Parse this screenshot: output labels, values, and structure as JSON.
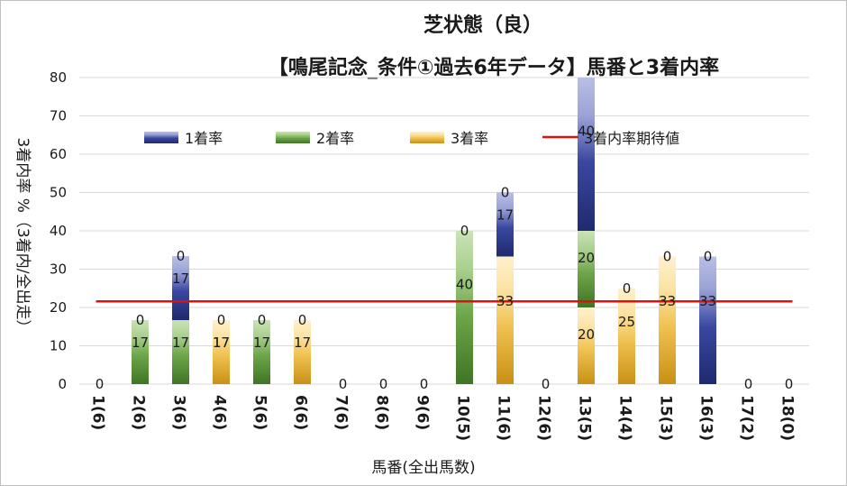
{
  "chart_data": {
    "type": "bar",
    "stacked": true,
    "title": "芝状態（良）",
    "subtitle": "【鳴尾記念_条件①過去6年データ】馬番と3着内率",
    "xlabel": "馬番(全出馬数)",
    "ylabel": "3着内率 %（3着内/全出走）",
    "ylim": [
      0,
      80
    ],
    "yticks": [
      "0",
      "10",
      "20",
      "30",
      "40",
      "50",
      "60",
      "70",
      "80"
    ],
    "grid": true,
    "legend_position": "top",
    "categories": [
      "1(6)",
      "2(6)",
      "3(6)",
      "4(6)",
      "5(6)",
      "6(6)",
      "7(6)",
      "8(6)",
      "9(6)",
      "10(5)",
      "11(6)",
      "12(6)",
      "13(5)",
      "14(4)",
      "15(3)",
      "16(3)",
      "17(2)",
      "18(0)"
    ],
    "series": [
      {
        "name": "1着率",
        "color": "#2f3a8a",
        "values": [
          0,
          0,
          16.7,
          0,
          0,
          0,
          0,
          0,
          0,
          0,
          16.7,
          0,
          40,
          0,
          0,
          33.3,
          0,
          0
        ]
      },
      {
        "name": "2着率",
        "color": "#4e8a2e",
        "values": [
          0,
          16.7,
          16.7,
          0,
          16.7,
          0,
          0,
          0,
          0,
          40,
          0,
          0,
          20,
          0,
          0,
          0,
          0,
          0
        ]
      },
      {
        "name": "3着率",
        "color": "#d9a21e",
        "values": [
          0,
          0,
          0,
          16.7,
          0,
          16.7,
          0,
          0,
          0,
          0,
          33.3,
          0,
          20,
          25,
          33.3,
          0,
          0,
          0
        ]
      }
    ],
    "expected_line": {
      "name": "3着内率期待値",
      "value": 21.6,
      "color": "#e01010"
    },
    "data_labels": [
      {
        "category": "1(6)",
        "labels": [
          "0"
        ]
      },
      {
        "category": "2(6)",
        "labels": [
          "17",
          "0"
        ]
      },
      {
        "category": "3(6)",
        "labels": [
          "17",
          "17",
          "0"
        ]
      },
      {
        "category": "4(6)",
        "labels": [
          "17",
          "0",
          "17"
        ]
      },
      {
        "category": "5(6)",
        "labels": [
          "17",
          "0"
        ]
      },
      {
        "category": "6(6)",
        "labels": [
          "17",
          "0"
        ]
      },
      {
        "category": "7(6)",
        "labels": [
          "0"
        ]
      },
      {
        "category": "8(6)",
        "labels": [
          "0"
        ]
      },
      {
        "category": "9(6)",
        "labels": [
          "0"
        ]
      },
      {
        "category": "10(5)",
        "labels": [
          "40",
          "0"
        ]
      },
      {
        "category": "11(6)",
        "labels": [
          "17",
          "0",
          "33"
        ]
      },
      {
        "category": "12(6)",
        "labels": [
          "0"
        ]
      },
      {
        "category": "13(5)",
        "labels": [
          "40",
          "20",
          "20"
        ]
      },
      {
        "category": "14(4)",
        "labels": [
          "25",
          "0"
        ]
      },
      {
        "category": "15(3)",
        "labels": [
          "33",
          "0"
        ]
      },
      {
        "category": "16(3)",
        "labels": [
          "33",
          "0"
        ]
      },
      {
        "category": "17(2)",
        "labels": [
          "0"
        ]
      },
      {
        "category": "18(0)",
        "labels": [
          "0"
        ]
      }
    ]
  }
}
